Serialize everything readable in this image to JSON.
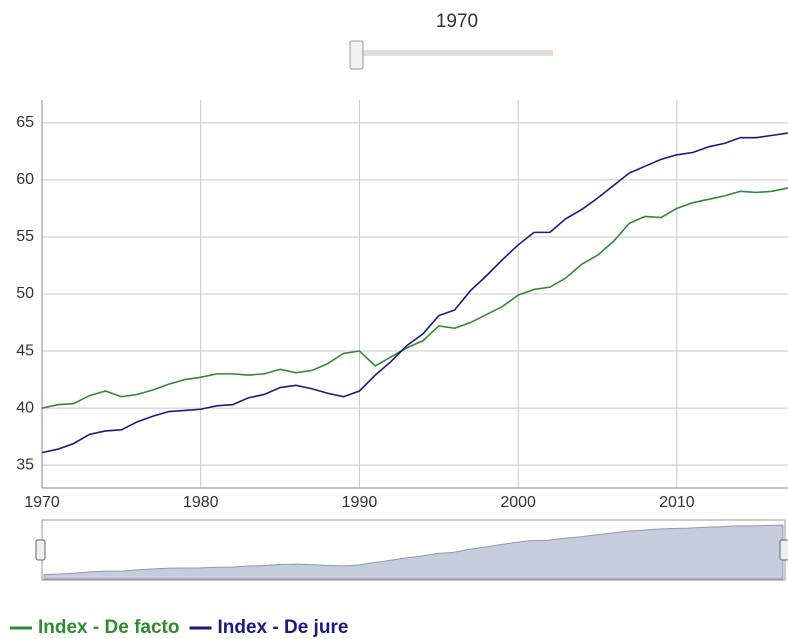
{
  "slider_value": 1970,
  "chart_data": {
    "type": "line",
    "x": [
      1970,
      1971,
      1972,
      1973,
      1974,
      1975,
      1976,
      1977,
      1978,
      1979,
      1980,
      1981,
      1982,
      1983,
      1984,
      1985,
      1986,
      1987,
      1988,
      1989,
      1990,
      1991,
      1992,
      1993,
      1994,
      1995,
      1996,
      1997,
      1998,
      1999,
      2000,
      2001,
      2002,
      2003,
      2004,
      2005,
      2006,
      2007,
      2008,
      2009,
      2010,
      2011,
      2012,
      2013,
      2014,
      2015,
      2016,
      2017
    ],
    "series": [
      {
        "name": "Index - De facto",
        "color": "#2e8b2e",
        "values": [
          40.0,
          40.3,
          40.4,
          41.1,
          41.5,
          41.0,
          41.2,
          41.6,
          42.1,
          42.5,
          42.7,
          43.0,
          43.0,
          42.9,
          43.0,
          43.4,
          43.1,
          43.3,
          43.9,
          44.8,
          45.0,
          43.7,
          44.5,
          45.3,
          45.9,
          47.2,
          47.0,
          47.5,
          48.2,
          48.9,
          49.9,
          50.4,
          50.6,
          51.4,
          52.6,
          53.4,
          54.6,
          56.2,
          56.8,
          56.7,
          57.5,
          58.0,
          58.3,
          58.6,
          59.0,
          58.9,
          59.0,
          59.3
        ]
      },
      {
        "name": "Index - De jure",
        "color": "#1a1a80",
        "values": [
          36.1,
          36.4,
          36.9,
          37.7,
          38.0,
          38.1,
          38.8,
          39.3,
          39.7,
          39.8,
          39.9,
          40.2,
          40.3,
          40.9,
          41.2,
          41.8,
          42.0,
          41.7,
          41.3,
          41.0,
          41.5,
          42.9,
          44.1,
          45.5,
          46.5,
          48.1,
          48.6,
          50.3,
          51.6,
          53.0,
          54.3,
          55.4,
          55.4,
          56.6,
          57.4,
          58.4,
          59.5,
          60.6,
          61.2,
          61.8,
          62.2,
          62.4,
          62.9,
          63.2,
          63.7,
          63.7,
          63.9,
          64.1
        ]
      }
    ],
    "xlim": [
      1970,
      2017
    ],
    "xticks": [
      1970,
      1980,
      1990,
      2000,
      2010
    ],
    "ylim": [
      33,
      67
    ],
    "yticks": [
      35,
      40,
      45,
      50,
      55,
      60,
      65
    ],
    "grid": true
  }
}
